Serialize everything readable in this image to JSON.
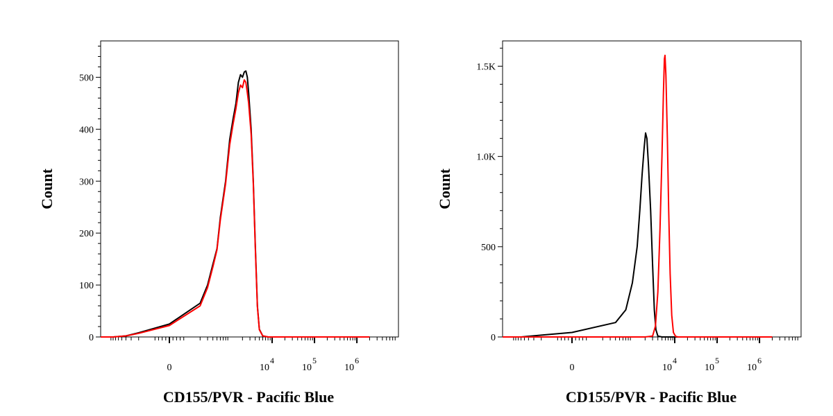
{
  "chart_data": [
    {
      "type": "line",
      "xlabel": "CD155/PVR - Pacific Blue",
      "ylabel": "Count",
      "x_scale": "biexponential",
      "xlim": [
        -2000,
        2000000
      ],
      "ylim": [
        0,
        570
      ],
      "y_ticks": [
        {
          "value": 0,
          "label": "0"
        },
        {
          "value": 100,
          "label": "100"
        },
        {
          "value": 200,
          "label": "200"
        },
        {
          "value": 300,
          "label": "300"
        },
        {
          "value": 400,
          "label": "400"
        },
        {
          "value": 500,
          "label": "500"
        }
      ],
      "x_ticks": [
        {
          "value": 0,
          "label": "0",
          "sup": ""
        },
        {
          "value": 10000,
          "label": "10",
          "sup": "4"
        },
        {
          "value": 100000,
          "label": "10",
          "sup": "5"
        },
        {
          "value": 1000000,
          "label": "10",
          "sup": "6"
        }
      ],
      "series": [
        {
          "color": "#000000",
          "points": [
            [
              -2000,
              0
            ],
            [
              -800,
              0
            ],
            [
              -400,
              2
            ],
            [
              -200,
              8
            ],
            [
              0,
              25
            ],
            [
              200,
              65
            ],
            [
              300,
              100
            ],
            [
              400,
              140
            ],
            [
              500,
              170
            ],
            [
              600,
              230
            ],
            [
              800,
              300
            ],
            [
              1000,
              380
            ],
            [
              1200,
              420
            ],
            [
              1400,
              450
            ],
            [
              1600,
              490
            ],
            [
              1800,
              505
            ],
            [
              2000,
              500
            ],
            [
              2200,
              510
            ],
            [
              2400,
              512
            ],
            [
              2600,
              500
            ],
            [
              2800,
              470
            ],
            [
              3200,
              400
            ],
            [
              3600,
              300
            ],
            [
              4000,
              180
            ],
            [
              4500,
              60
            ],
            [
              5000,
              15
            ],
            [
              6000,
              2
            ],
            [
              8000,
              0
            ],
            [
              2000000,
              0
            ]
          ]
        },
        {
          "color": "#ff0000",
          "points": [
            [
              -2000,
              0
            ],
            [
              -800,
              0
            ],
            [
              -400,
              2
            ],
            [
              -200,
              7
            ],
            [
              0,
              22
            ],
            [
              200,
              60
            ],
            [
              300,
              95
            ],
            [
              400,
              135
            ],
            [
              500,
              168
            ],
            [
              600,
              225
            ],
            [
              800,
              295
            ],
            [
              1000,
              370
            ],
            [
              1200,
              410
            ],
            [
              1400,
              440
            ],
            [
              1600,
              470
            ],
            [
              1800,
              485
            ],
            [
              2000,
              480
            ],
            [
              2200,
              495
            ],
            [
              2400,
              490
            ],
            [
              2600,
              470
            ],
            [
              2800,
              450
            ],
            [
              3200,
              390
            ],
            [
              3600,
              295
            ],
            [
              4000,
              175
            ],
            [
              4500,
              58
            ],
            [
              5000,
              14
            ],
            [
              6000,
              2
            ],
            [
              8000,
              0
            ],
            [
              2000000,
              0
            ]
          ]
        }
      ]
    },
    {
      "type": "line",
      "xlabel": "CD155/PVR - Pacific Blue",
      "ylabel": "Count",
      "x_scale": "biexponential",
      "xlim": [
        -2000,
        2000000
      ],
      "ylim": [
        0,
        1640
      ],
      "y_ticks": [
        {
          "value": 0,
          "label": "0"
        },
        {
          "value": 500,
          "label": "500"
        },
        {
          "value": 1000,
          "label": "1.0K"
        },
        {
          "value": 1500,
          "label": "1.5K"
        }
      ],
      "x_ticks": [
        {
          "value": 0,
          "label": "0",
          "sup": ""
        },
        {
          "value": 10000,
          "label": "10",
          "sup": "4"
        },
        {
          "value": 100000,
          "label": "10",
          "sup": "5"
        },
        {
          "value": 1000000,
          "label": "10",
          "sup": "6"
        }
      ],
      "series": [
        {
          "color": "#000000",
          "points": [
            [
              -2000,
              0
            ],
            [
              -600,
              0
            ],
            [
              -200,
              10
            ],
            [
              0,
              25
            ],
            [
              400,
              80
            ],
            [
              700,
              150
            ],
            [
              1000,
              300
            ],
            [
              1300,
              500
            ],
            [
              1500,
              700
            ],
            [
              1700,
              900
            ],
            [
              1900,
              1050
            ],
            [
              2050,
              1130
            ],
            [
              2200,
              1100
            ],
            [
              2400,
              950
            ],
            [
              2700,
              700
            ],
            [
              3000,
              400
            ],
            [
              3300,
              150
            ],
            [
              3600,
              40
            ],
            [
              4000,
              5
            ],
            [
              5000,
              0
            ],
            [
              2000000,
              0
            ]
          ]
        },
        {
          "color": "#ff0000",
          "points": [
            [
              -2000,
              0
            ],
            [
              2000,
              0
            ],
            [
              3000,
              5
            ],
            [
              3500,
              60
            ],
            [
              4000,
              250
            ],
            [
              4500,
              600
            ],
            [
              5000,
              1000
            ],
            [
              5400,
              1350
            ],
            [
              5700,
              1540
            ],
            [
              5900,
              1560
            ],
            [
              6200,
              1450
            ],
            [
              6700,
              1100
            ],
            [
              7200,
              700
            ],
            [
              7800,
              350
            ],
            [
              8500,
              120
            ],
            [
              9300,
              25
            ],
            [
              10500,
              3
            ],
            [
              12000,
              0
            ],
            [
              2000000,
              0
            ]
          ]
        }
      ]
    }
  ]
}
